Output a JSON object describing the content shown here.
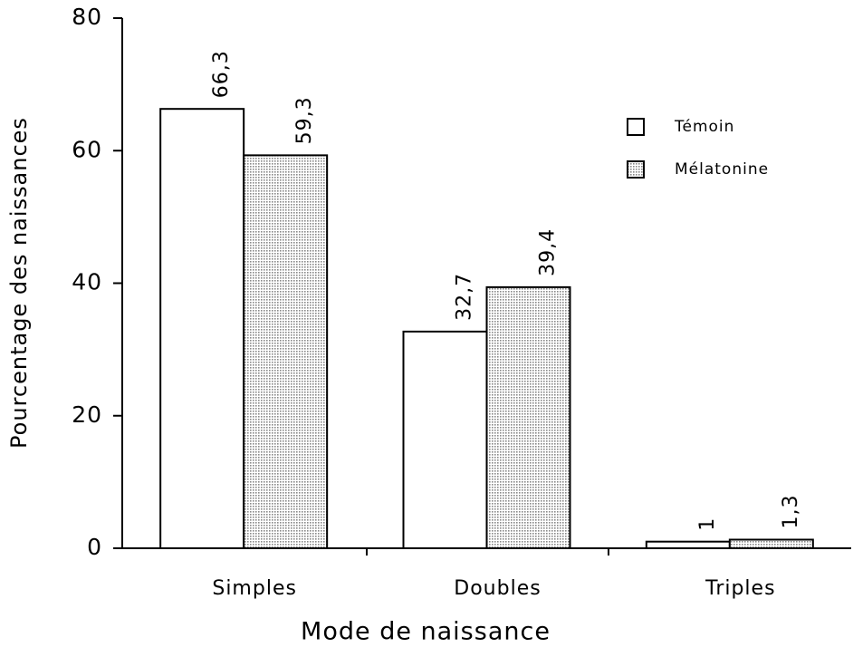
{
  "chart_data": {
    "type": "bar",
    "xlabel": "Mode de naissance",
    "ylabel": "Pourcentage des naissances",
    "categories": [
      "Simples",
      "Doubles",
      "Triples"
    ],
    "series": [
      {
        "name": "Témoin",
        "color": "#ffffff",
        "values": [
          66.3,
          32.7,
          1
        ],
        "value_labels": [
          "66,3",
          "32,7",
          "1"
        ]
      },
      {
        "name": "Mélatonine",
        "color": "#8a8a8a",
        "values": [
          59.3,
          39.4,
          1.3
        ],
        "value_labels": [
          "59,3",
          "39,4",
          "1,3"
        ]
      }
    ],
    "ylim": [
      0,
      80
    ],
    "yticks": [
      0,
      20,
      40,
      60,
      80
    ],
    "legend": "upper right",
    "grid": false
  }
}
